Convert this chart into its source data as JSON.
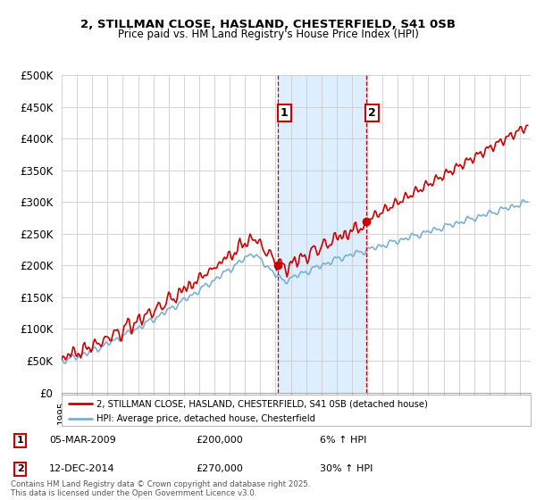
{
  "title_line1": "2, STILLMAN CLOSE, HASLAND, CHESTERFIELD, S41 0SB",
  "title_line2": "Price paid vs. HM Land Registry's House Price Index (HPI)",
  "ylim": [
    0,
    500000
  ],
  "yticks": [
    0,
    50000,
    100000,
    150000,
    200000,
    250000,
    300000,
    350000,
    400000,
    450000,
    500000
  ],
  "ytick_labels": [
    "£0",
    "£50K",
    "£100K",
    "£150K",
    "£200K",
    "£250K",
    "£300K",
    "£350K",
    "£400K",
    "£450K",
    "£500K"
  ],
  "xlim_start": 1995.0,
  "xlim_end": 2025.7,
  "sale1_x": 2009.17,
  "sale1_y": 200000,
  "sale2_x": 2014.92,
  "sale2_y": 270000,
  "shade_x1": 2009.17,
  "shade_x2": 2014.92,
  "legend_label_red": "2, STILLMAN CLOSE, HASLAND, CHESTERFIELD, S41 0SB (detached house)",
  "legend_label_blue": "HPI: Average price, detached house, Chesterfield",
  "annotation1_num": "1",
  "annotation1_date": "05-MAR-2009",
  "annotation1_price": "£200,000",
  "annotation1_hpi": "6% ↑ HPI",
  "annotation2_num": "2",
  "annotation2_date": "12-DEC-2014",
  "annotation2_price": "£270,000",
  "annotation2_hpi": "30% ↑ HPI",
  "footnote": "Contains HM Land Registry data © Crown copyright and database right 2025.\nThis data is licensed under the Open Government Licence v3.0.",
  "red_color": "#cc0000",
  "blue_color": "#7ab0d4",
  "shade_color": "#ddeeff",
  "background_color": "#ffffff",
  "grid_color": "#cccccc"
}
